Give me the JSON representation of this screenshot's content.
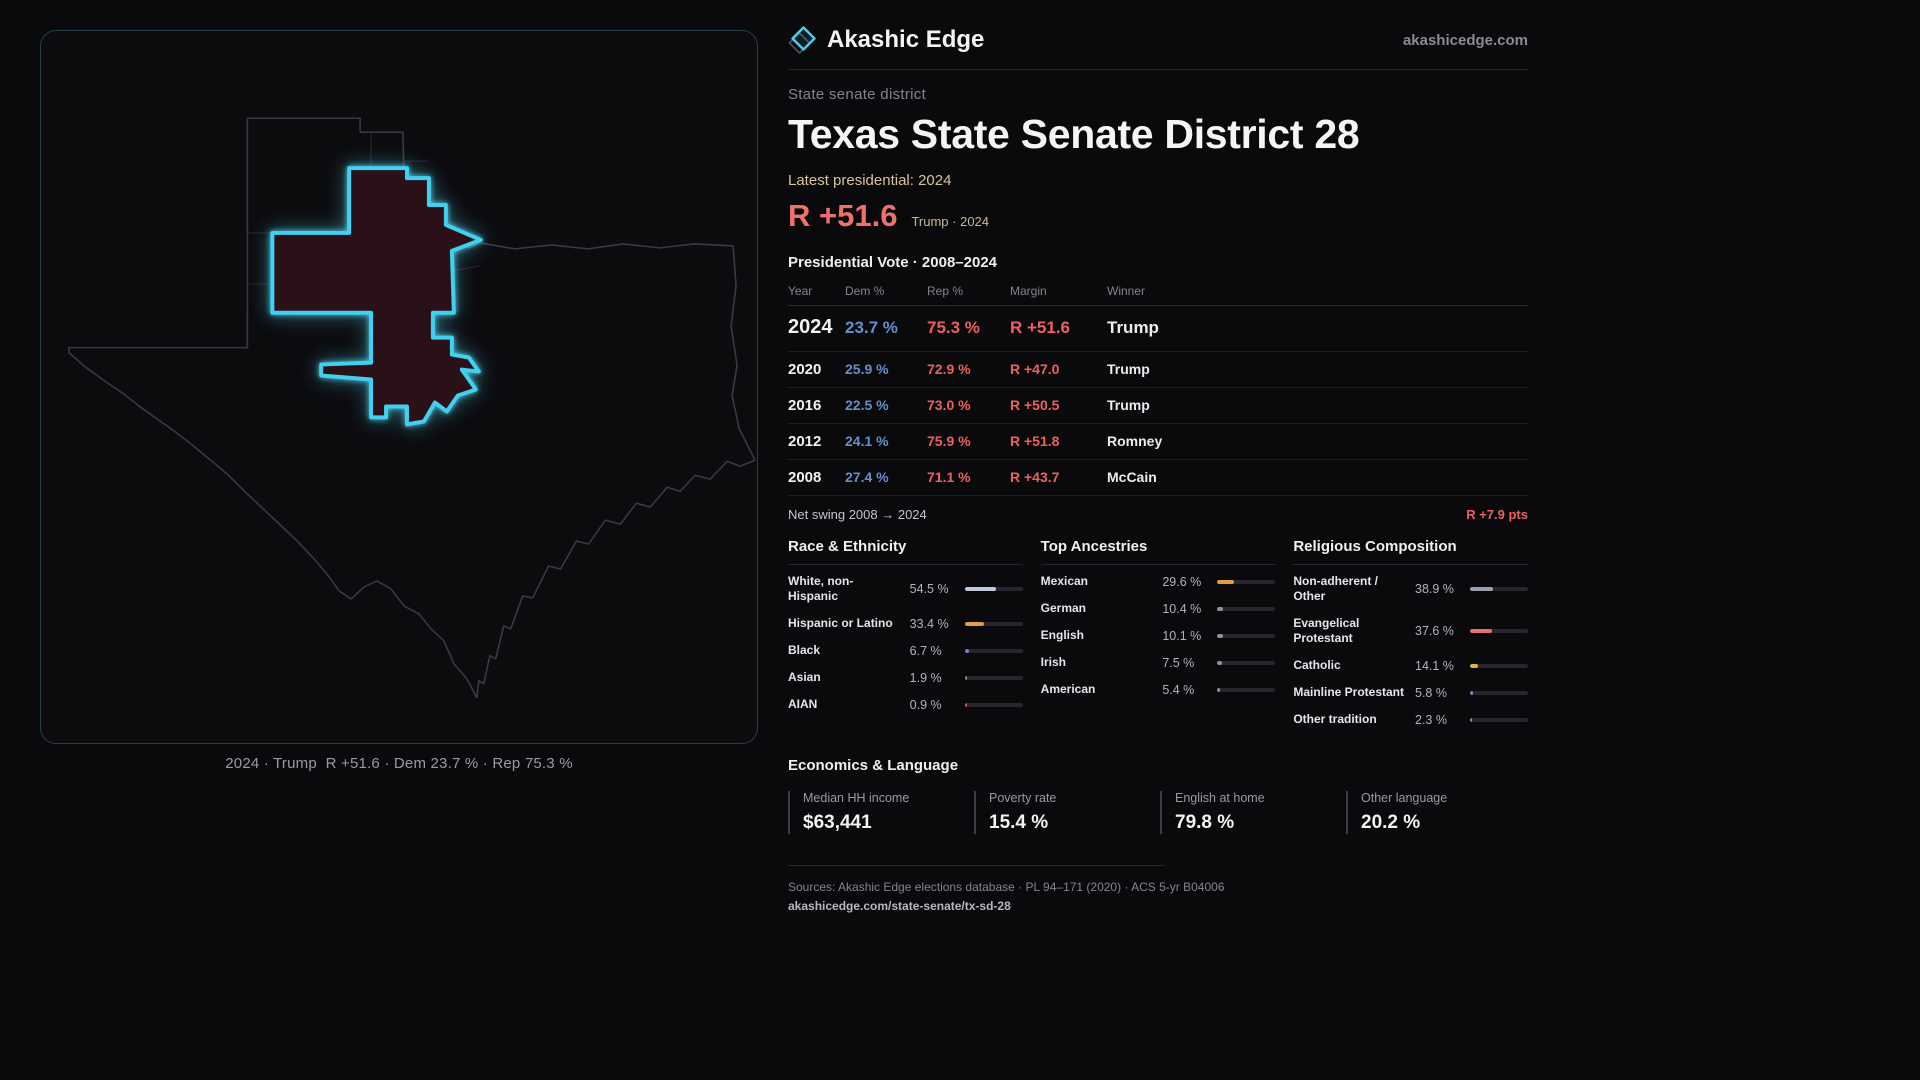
{
  "brand": {
    "name": "Akashic Edge",
    "domain": "akashicedge.com"
  },
  "colors": {
    "accent_cyan": "#41d0f0",
    "rep_red": "#ee6060",
    "dem_blue": "#648fce",
    "gold": "#d8c39a",
    "district_fill": "#2a1118"
  },
  "map": {
    "caption": "2024 · Trump  R +51.6 · Dem 23.7 % · Rep 75.3 %"
  },
  "header": {
    "kicker": "State senate district",
    "title": "Texas State Senate District 28",
    "latest_label": "Latest presidential: 2024",
    "headline_margin": "R +51.6",
    "headline_sub": "Trump · 2024"
  },
  "table": {
    "title": "Presidential Vote · 2008–2024",
    "columns": [
      "Year",
      "Dem %",
      "Rep %",
      "Margin",
      "Winner"
    ],
    "rows": [
      {
        "year": "2024",
        "dem": "23.7 %",
        "rep": "75.3 %",
        "margin": "R +51.6",
        "winner": "Trump"
      },
      {
        "year": "2020",
        "dem": "25.9 %",
        "rep": "72.9 %",
        "margin": "R +47.0",
        "winner": "Trump"
      },
      {
        "year": "2016",
        "dem": "22.5 %",
        "rep": "73.0 %",
        "margin": "R +50.5",
        "winner": "Trump"
      },
      {
        "year": "2012",
        "dem": "24.1 %",
        "rep": "75.9 %",
        "margin": "R +51.8",
        "winner": "Romney"
      },
      {
        "year": "2008",
        "dem": "27.4 %",
        "rep": "71.1 %",
        "margin": "R +43.7",
        "winner": "McCain"
      }
    ],
    "net_swing_label": "Net swing 2008 → 2024",
    "net_swing_value": "R +7.9 pts"
  },
  "demographics": {
    "race": {
      "title": "Race & Ethnicity",
      "rows": [
        {
          "label": "White, non-Hispanic",
          "value": "54.5 %",
          "pct": 54.5,
          "color": "#c0c9da"
        },
        {
          "label": "Hispanic or Latino",
          "value": "33.4 %",
          "pct": 33.4,
          "color": "#e29d3e"
        },
        {
          "label": "Black",
          "value": "6.7 %",
          "pct": 6.7,
          "color": "#8474e2"
        },
        {
          "label": "Asian",
          "value": "1.9 %",
          "pct": 1.9,
          "color": "#5fb06c"
        },
        {
          "label": "AIAN",
          "value": "0.9 %",
          "pct": 0.9,
          "color": "#c05a48"
        }
      ]
    },
    "ancestries": {
      "title": "Top Ancestries",
      "rows": [
        {
          "label": "Mexican",
          "value": "29.6 %",
          "pct": 29.6,
          "color": "#e29d3e"
        },
        {
          "label": "German",
          "value": "10.4 %",
          "pct": 10.4,
          "color": "#8d93a0"
        },
        {
          "label": "English",
          "value": "10.1 %",
          "pct": 10.1,
          "color": "#8d93a0"
        },
        {
          "label": "Irish",
          "value": "7.5 %",
          "pct": 7.5,
          "color": "#8d93a0"
        },
        {
          "label": "American",
          "value": "5.4 %",
          "pct": 5.4,
          "color": "#8d93a0"
        }
      ]
    },
    "religion": {
      "title": "Religious Composition",
      "rows": [
        {
          "label": "Non-adherent / Other",
          "value": "38.9 %",
          "pct": 38.9,
          "color": "#9aa0ab"
        },
        {
          "label": "Evangelical Protestant",
          "value": "37.6 %",
          "pct": 37.6,
          "color": "#e4716d"
        },
        {
          "label": "Catholic",
          "value": "14.1 %",
          "pct": 14.1,
          "color": "#e0b23e"
        },
        {
          "label": "Mainline Protestant",
          "value": "5.8 %",
          "pct": 5.8,
          "color": "#5d8fd8"
        },
        {
          "label": "Other tradition",
          "value": "2.3 %",
          "pct": 2.3,
          "color": "#8d93a0"
        }
      ]
    }
  },
  "economics": {
    "title": "Economics & Language",
    "stats": [
      {
        "label": "Median HH income",
        "value": "$63,441"
      },
      {
        "label": "Poverty rate",
        "value": "15.4 %"
      },
      {
        "label": "English at home",
        "value": "79.8 %"
      },
      {
        "label": "Other language",
        "value": "20.2 %"
      }
    ]
  },
  "footer": {
    "sources": "Sources: Akashic Edge elections database · PL 94–171 (2020) · ACS 5-yr B04006",
    "permalink": "akashicedge.com/state-senate/tx-sd-28"
  }
}
